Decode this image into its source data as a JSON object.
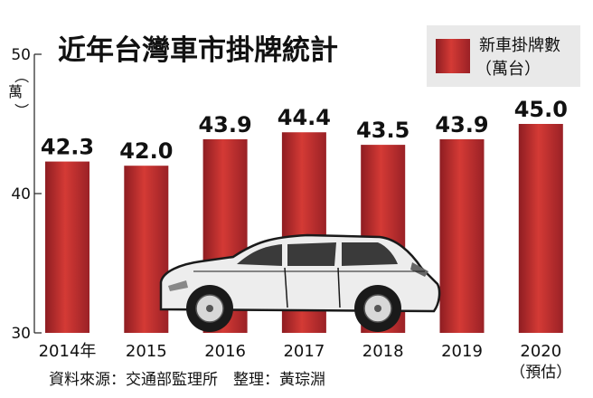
{
  "chart_data": {
    "type": "bar",
    "title": "近年台灣車市掛牌統計",
    "ylabel": "（萬）",
    "categories": [
      "2014年",
      "2015",
      "2016",
      "2017",
      "2018",
      "2019",
      "2020"
    ],
    "category_notes": [
      "",
      "",
      "",
      "",
      "",
      "",
      "（預估）"
    ],
    "series": [
      {
        "name": "新車掛牌數（萬台）",
        "values": [
          42.3,
          42.0,
          43.9,
          44.4,
          43.5,
          43.9,
          45.0
        ],
        "value_labels": [
          "42.3",
          "42.0",
          "43.9",
          "44.4",
          "43.5",
          "43.9",
          "45.0"
        ]
      }
    ],
    "ylim": [
      30,
      50
    ],
    "yticks": [
      30,
      40,
      50
    ],
    "legend": {
      "line1": "新車掛牌數",
      "line2": "（萬台）",
      "position": "top-right"
    },
    "grid": false,
    "colors": {
      "bar": "#b3262b",
      "bar_light": "#e0473f",
      "legend_bg": "#e9e9e9"
    }
  },
  "source": "資料來源：交通部監理所　整理：黃琮淵",
  "illustration": "car-icon"
}
